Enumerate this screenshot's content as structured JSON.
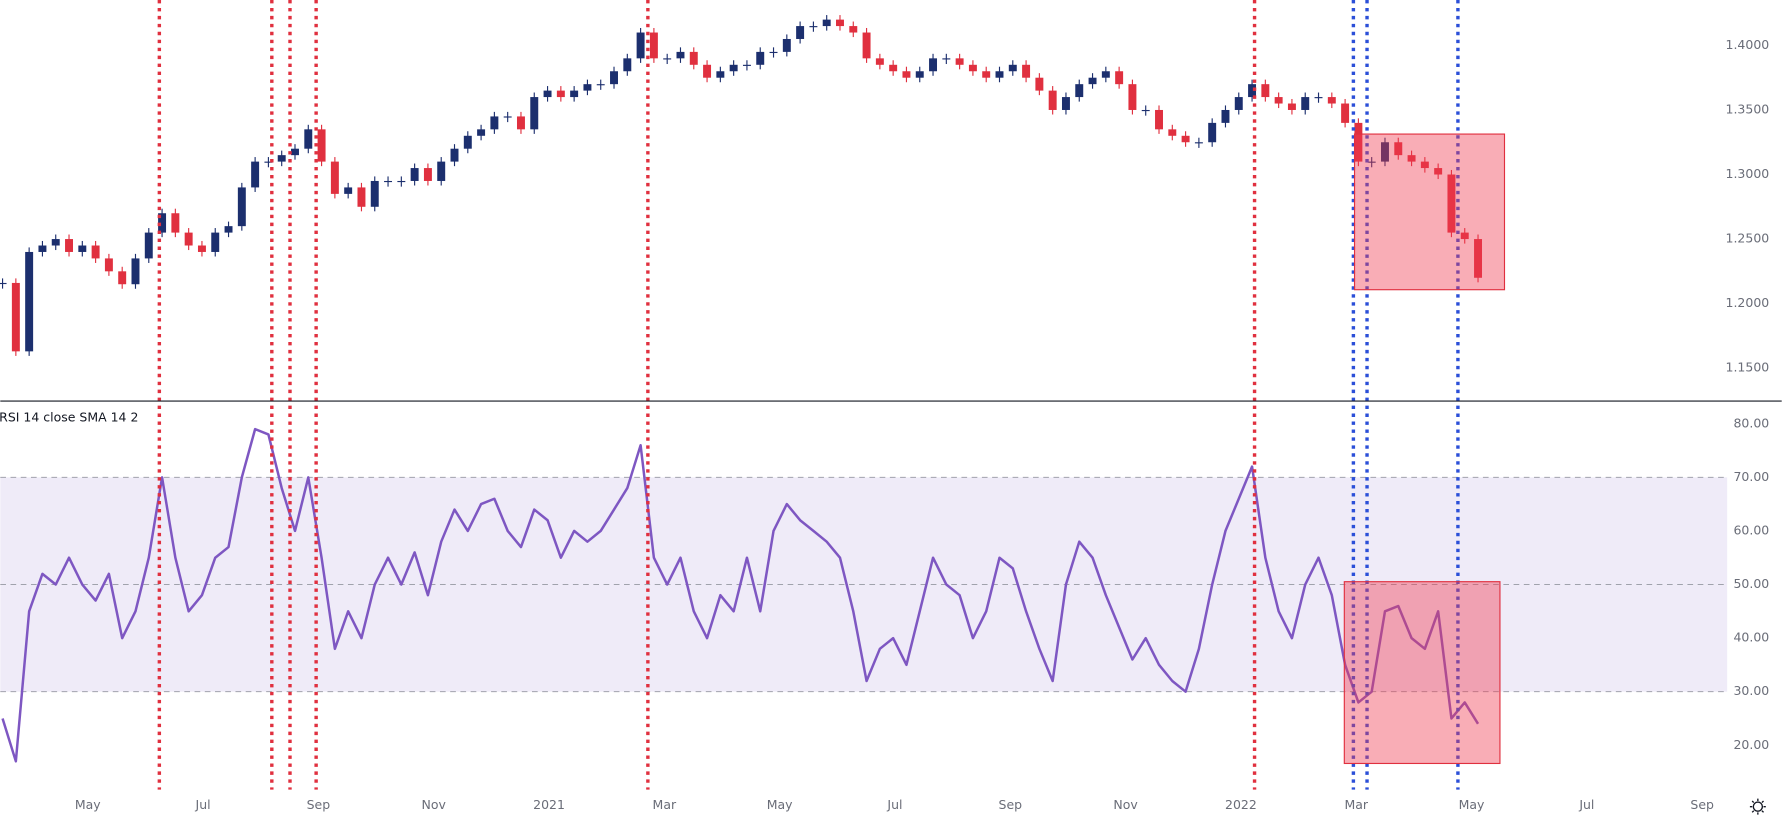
{
  "chart_data": [
    {
      "type": "candlestick",
      "up_color": "#1c2f6e",
      "down_color": "#e0303f",
      "values": [
        1.216,
        1.163,
        1.24,
        1.245,
        1.25,
        1.24,
        1.245,
        1.235,
        1.225,
        1.215,
        1.235,
        1.255,
        1.27,
        1.255,
        1.245,
        1.24,
        1.255,
        1.26,
        1.29,
        1.31,
        1.31,
        1.315,
        1.32,
        1.335,
        1.31,
        1.285,
        1.29,
        1.275,
        1.295,
        1.295,
        1.295,
        1.305,
        1.295,
        1.31,
        1.32,
        1.33,
        1.335,
        1.345,
        1.345,
        1.335,
        1.36,
        1.365,
        1.36,
        1.365,
        1.37,
        1.37,
        1.38,
        1.39,
        1.41,
        1.39,
        1.39,
        1.395,
        1.385,
        1.375,
        1.38,
        1.385,
        1.385,
        1.395,
        1.395,
        1.405,
        1.415,
        1.415,
        1.42,
        1.415,
        1.41,
        1.39,
        1.385,
        1.38,
        1.375,
        1.38,
        1.39,
        1.39,
        1.385,
        1.38,
        1.375,
        1.38,
        1.385,
        1.375,
        1.365,
        1.35,
        1.36,
        1.37,
        1.375,
        1.38,
        1.37,
        1.35,
        1.35,
        1.335,
        1.33,
        1.325,
        1.325,
        1.34,
        1.35,
        1.36,
        1.37,
        1.36,
        1.355,
        1.35,
        1.36,
        1.36,
        1.355,
        1.34,
        1.31,
        1.31,
        1.325,
        1.315,
        1.31,
        1.305,
        1.3,
        1.255,
        1.25,
        1.22
      ],
      "ylim": [
        1.1245,
        1.4352
      ],
      "yticks": [
        {
          "value": 1.15,
          "label": "1.1500"
        },
        {
          "value": 1.2,
          "label": "1.2000"
        },
        {
          "value": 1.25,
          "label": "1.2500"
        },
        {
          "value": 1.3,
          "label": "1.3000"
        },
        {
          "value": 1.35,
          "label": "1.3500"
        },
        {
          "value": 1.4,
          "label": "1.4000"
        }
      ]
    },
    {
      "type": "line",
      "title": "RSI 14 close SMA 14 2",
      "color": "#7e57c2",
      "band": [
        30,
        70
      ],
      "band_color": "#efebf8",
      "levels": [
        70,
        50,
        30
      ],
      "values": [
        25,
        17,
        45,
        52,
        50,
        55,
        50,
        47,
        52,
        40,
        45,
        55,
        70,
        55,
        45,
        48,
        55,
        57,
        70,
        79,
        78,
        68,
        60,
        70,
        55,
        38,
        45,
        40,
        50,
        55,
        50,
        56,
        48,
        58,
        64,
        60,
        65,
        66,
        60,
        57,
        64,
        62,
        55,
        60,
        58,
        60,
        64,
        68,
        76,
        55,
        50,
        55,
        45,
        40,
        48,
        45,
        55,
        45,
        60,
        65,
        62,
        60,
        58,
        55,
        45,
        32,
        38,
        40,
        35,
        45,
        55,
        50,
        48,
        40,
        45,
        55,
        53,
        45,
        38,
        32,
        50,
        58,
        55,
        48,
        42,
        36,
        40,
        35,
        32,
        30,
        38,
        50,
        60,
        66,
        72,
        55,
        45,
        40,
        50,
        55,
        48,
        35,
        28,
        30,
        45,
        46,
        40,
        38,
        45,
        25,
        28,
        24
      ],
      "ylim": [
        11.73,
        84.24
      ],
      "yticks": [
        {
          "value": 20,
          "label": "20.00"
        },
        {
          "value": 30,
          "label": "30.00"
        },
        {
          "value": 40,
          "label": "40.00"
        },
        {
          "value": 50,
          "label": "50.00"
        },
        {
          "value": 60,
          "label": "60.00"
        },
        {
          "value": 70,
          "label": "70.00"
        },
        {
          "value": 80,
          "label": "80.00"
        }
      ],
      "xticks": [
        "May",
        "Jul",
        "Sep",
        "Nov",
        "2021",
        "Mar",
        "May",
        "Jul",
        "Sep",
        "Nov",
        "2022",
        "Mar",
        "May",
        "Jul",
        "Sep"
      ]
    }
  ]
}
